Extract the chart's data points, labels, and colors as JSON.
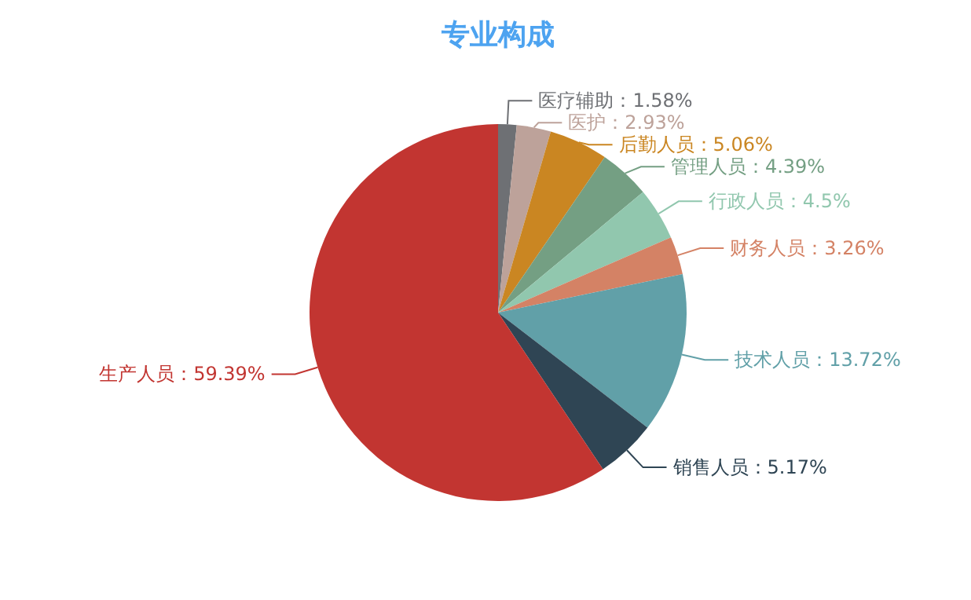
{
  "chart_data": {
    "type": "pie",
    "title": "专业构成",
    "categories": [
      "医疗辅助",
      "医护",
      "后勤人员",
      "管理人员",
      "行政人员",
      "财务人员",
      "技术人员",
      "销售人员",
      "生产人员"
    ],
    "values": [
      1.58,
      2.93,
      5.06,
      4.39,
      4.5,
      3.26,
      13.72,
      5.17,
      59.39
    ],
    "colors": [
      "#6e7074",
      "#bda29a",
      "#ca8622",
      "#749f83",
      "#91c7ae",
      "#d48265",
      "#61a0a8",
      "#2f4554",
      "#c23531"
    ],
    "value_labels": [
      "：1.58%",
      "：2.93%",
      "：5.06%",
      "：4.39%",
      "：4.5%",
      "：3.26%",
      "：13.72%",
      "：5.17%",
      "：59.39%"
    ]
  }
}
